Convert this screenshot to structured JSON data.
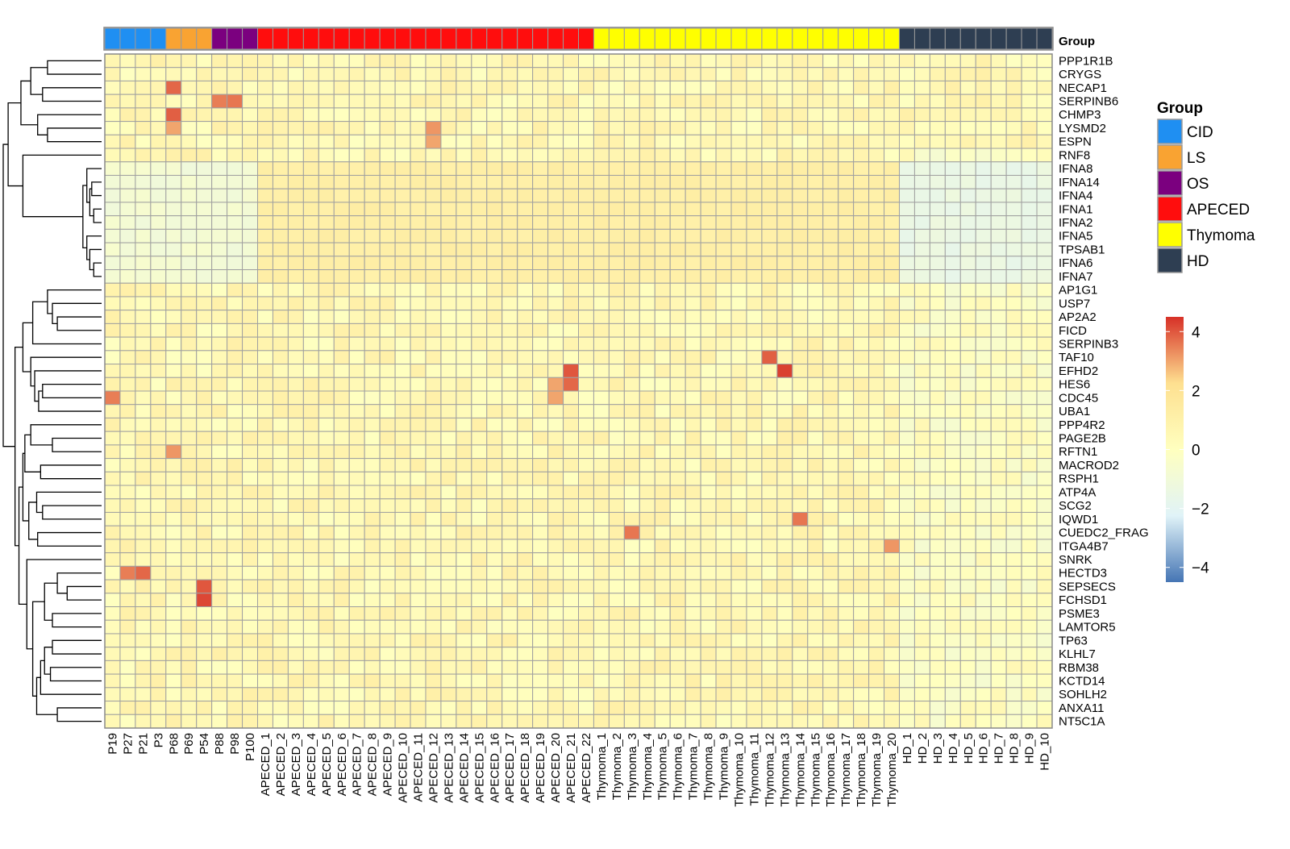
{
  "chart_data": {
    "type": "heatmap",
    "annotation_title": "Group",
    "groups": [
      {
        "name": "CID",
        "color": "#1f8ff2",
        "samples": [
          "P19",
          "P27",
          "P21",
          "P3"
        ]
      },
      {
        "name": "LS",
        "color": "#f9a332",
        "samples": [
          "P68",
          "P69",
          "P54"
        ]
      },
      {
        "name": "OS",
        "color": "#7b007f",
        "samples": [
          "P88",
          "P98",
          "P100"
        ]
      },
      {
        "name": "APECED",
        "color": "#ff0d0d",
        "samples": [
          "APECED_1",
          "APECED_2",
          "APECED_3",
          "APECED_4",
          "APECED_5",
          "APECED_6",
          "APECED_7",
          "APECED_8",
          "APECED_9",
          "APECED_10",
          "APECED_11",
          "APECED_12",
          "APECED_13",
          "APECED_14",
          "APECED_15",
          "APECED_16",
          "APECED_17",
          "APECED_18",
          "APECED_19",
          "APECED_20",
          "APECED_21",
          "APECED_22"
        ]
      },
      {
        "name": "Thymoma",
        "color": "#ffff00",
        "samples": [
          "Thymoma_1",
          "Thymoma_2",
          "Thymoma_3",
          "Thymoma_4",
          "Thymoma_5",
          "Thymoma_6",
          "Thymoma_7",
          "Thymoma_8",
          "Thymoma_9",
          "Thymoma_10",
          "Thymoma_11",
          "Thymoma_12",
          "Thymoma_13",
          "Thymoma_14",
          "Thymoma_15",
          "Thymoma_16",
          "Thymoma_17",
          "Thymoma_18",
          "Thymoma_19",
          "Thymoma_20"
        ]
      },
      {
        "name": "HD",
        "color": "#2e3e52",
        "samples": [
          "HD_1",
          "HD_2",
          "HD_3",
          "HD_4",
          "HD_5",
          "HD_6",
          "HD_7",
          "HD_8",
          "HD_9",
          "HD_10"
        ]
      }
    ],
    "genes": [
      "PPP1R1B",
      "CRYGS",
      "NECAP1",
      "SERPINB6",
      "CHMP3",
      "LYSMD2",
      "ESPN",
      "RNF8",
      "IFNA8",
      "IFNA14",
      "IFNA4",
      "IFNA1",
      "IFNA2",
      "IFNA5",
      "TPSAB1",
      "IFNA6",
      "IFNA7",
      "AP1G1",
      "USP7",
      "AP2A2",
      "FICD",
      "SERPINB3",
      "TAF10",
      "EFHD2",
      "HES6",
      "CDC45",
      "UBA1",
      "PPP4R2",
      "PAGE2B",
      "RFTN1",
      "MACROD2",
      "RSPH1",
      "ATP4A",
      "SCG2",
      "IQWD1",
      "CUEDC2_FRAG",
      "ITGA4B7",
      "SNRK",
      "HECTD3",
      "SEPSECS",
      "FCHSD1",
      "PSME3",
      "LAMTOR5",
      "TP63",
      "KLHL7",
      "RBM38",
      "KCTD14",
      "SOHLH2",
      "ANXA11",
      "NT5C1A"
    ],
    "legend": {
      "ticks": [
        "4",
        "2",
        "0",
        "−2",
        "−4"
      ],
      "tick_values": [
        4,
        2,
        0,
        -2,
        -4
      ],
      "range": [
        -4.5,
        4.5
      ],
      "colors": [
        "#4575b4",
        "#e0f3f8",
        "#ffffbf",
        "#fee090",
        "#d73027"
      ]
    },
    "highlights": [
      {
        "gene": "NECAP1",
        "sample": "P68",
        "value": 3.8
      },
      {
        "gene": "SERPINB6",
        "sample": "P88",
        "value": 3.5
      },
      {
        "gene": "SERPINB6",
        "sample": "P98",
        "value": 3.6
      },
      {
        "gene": "CHMP3",
        "sample": "P68",
        "value": 3.9
      },
      {
        "gene": "LYSMD2",
        "sample": "P68",
        "value": 3.0
      },
      {
        "gene": "LYSMD2",
        "sample": "APECED_12",
        "value": 3.2
      },
      {
        "gene": "ESPN",
        "sample": "APECED_12",
        "value": 3.0
      },
      {
        "gene": "TAF10",
        "sample": "Thymoma_12",
        "value": 3.9
      },
      {
        "gene": "EFHD2",
        "sample": "Thymoma_13",
        "value": 4.3
      },
      {
        "gene": "EFHD2",
        "sample": "APECED_21",
        "value": 4.0
      },
      {
        "gene": "HES6",
        "sample": "APECED_21",
        "value": 3.8
      },
      {
        "gene": "HES6",
        "sample": "APECED_20",
        "value": 3.0
      },
      {
        "gene": "CDC45",
        "sample": "P19",
        "value": 3.5
      },
      {
        "gene": "CDC45",
        "sample": "APECED_20",
        "value": 3.0
      },
      {
        "gene": "HECTD3",
        "sample": "P27",
        "value": 3.5
      },
      {
        "gene": "HECTD3",
        "sample": "P21",
        "value": 3.8
      },
      {
        "gene": "SEPSECS",
        "sample": "P54",
        "value": 4.0
      },
      {
        "gene": "FCHSD1",
        "sample": "P54",
        "value": 4.2
      },
      {
        "gene": "CUEDC2_FRAG",
        "sample": "Thymoma_3",
        "value": 3.6
      },
      {
        "gene": "IQWD1",
        "sample": "Thymoma_14",
        "value": 3.6
      },
      {
        "gene": "RFTN1",
        "sample": "P68",
        "value": 3.2
      },
      {
        "gene": "ITGA4B7",
        "sample": "Thymoma_20",
        "value": 3.2
      }
    ]
  }
}
